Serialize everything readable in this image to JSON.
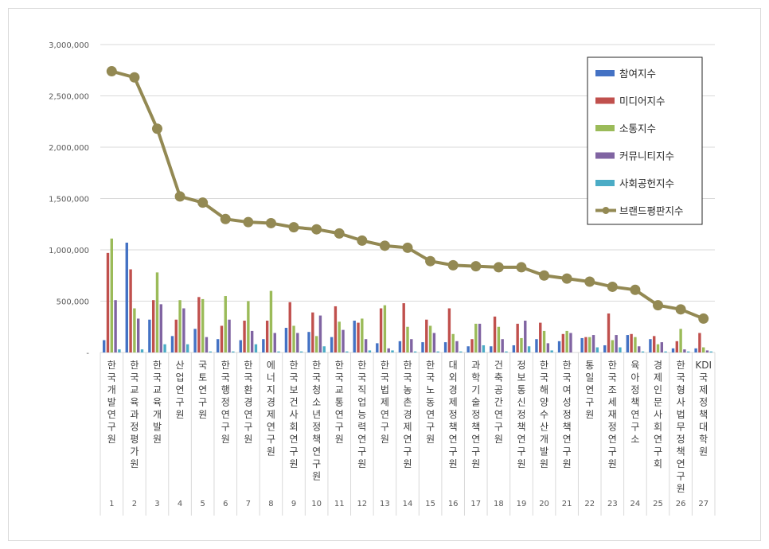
{
  "chart_data": {
    "type": "bar",
    "ylim": [
      0,
      3000000
    ],
    "yticks": [
      0,
      500000,
      1000000,
      1500000,
      2000000,
      2500000,
      3000000
    ],
    "ytick_labels": [
      "-",
      "500,000",
      "1,000,000",
      "1,500,000",
      "2,000,000",
      "2,500,000",
      "3,000,000"
    ],
    "grid": true,
    "legend_position": "top-right",
    "categories": [
      "한국개발연구원",
      "한국교육과정평가원",
      "한국교육개발원",
      "산업연구원",
      "국토연구원",
      "한국행정연구원",
      "한국환경연구원",
      "에너지경제연구원",
      "한국보건사회연구원",
      "한국청소년정책연구원",
      "한국교통연구원",
      "한국직업능력연구원",
      "한국법제연구원",
      "한국농촌경제연구원",
      "한국노동연구원",
      "대외경제정책연구원",
      "과학기술정책연구원",
      "건축공간연구원",
      "정보통신정책연구원",
      "한국해양수산개발원",
      "한국여성정책연구원",
      "통일연구원",
      "한국조세재정연구원",
      "육아정책연구소",
      "경제인문사회연구회",
      "한국형사법무정책연구원",
      "KDI국제정책대학원"
    ],
    "ranks": [
      "1",
      "2",
      "3",
      "4",
      "5",
      "6",
      "7",
      "8",
      "9",
      "10",
      "11",
      "12",
      "13",
      "14",
      "15",
      "16",
      "17",
      "18",
      "19",
      "20",
      "21",
      "22",
      "23",
      "24",
      "25",
      "26",
      "27"
    ],
    "series": [
      {
        "name": "참여지수",
        "color": "#4472c4",
        "values": [
          120000,
          1070000,
          320000,
          160000,
          230000,
          130000,
          120000,
          130000,
          240000,
          200000,
          150000,
          310000,
          90000,
          110000,
          100000,
          100000,
          60000,
          60000,
          70000,
          130000,
          110000,
          140000,
          70000,
          170000,
          130000,
          40000,
          40000
        ]
      },
      {
        "name": "미디어지수",
        "color": "#c0504d",
        "values": [
          970000,
          810000,
          510000,
          320000,
          540000,
          260000,
          310000,
          310000,
          490000,
          390000,
          450000,
          290000,
          430000,
          480000,
          320000,
          430000,
          130000,
          350000,
          280000,
          290000,
          180000,
          150000,
          380000,
          180000,
          160000,
          110000,
          190000
        ]
      },
      {
        "name": "소통지수",
        "color": "#9bbb59",
        "values": [
          1110000,
          430000,
          780000,
          510000,
          520000,
          550000,
          500000,
          600000,
          260000,
          160000,
          300000,
          330000,
          460000,
          250000,
          260000,
          180000,
          280000,
          250000,
          140000,
          210000,
          210000,
          150000,
          120000,
          150000,
          80000,
          230000,
          50000
        ]
      },
      {
        "name": "커뮤니티지수",
        "color": "#8064a2",
        "values": [
          510000,
          330000,
          470000,
          430000,
          150000,
          320000,
          210000,
          190000,
          190000,
          360000,
          220000,
          130000,
          40000,
          130000,
          190000,
          110000,
          280000,
          130000,
          310000,
          90000,
          190000,
          170000,
          170000,
          60000,
          100000,
          30000,
          20000
        ]
      },
      {
        "name": "사회공헌지수",
        "color": "#4bacc6",
        "values": [
          30000,
          30000,
          80000,
          80000,
          10000,
          10000,
          80000,
          10000,
          10000,
          60000,
          10000,
          20000,
          20000,
          10000,
          10000,
          10000,
          70000,
          10000,
          60000,
          20000,
          0,
          50000,
          50000,
          10000,
          10000,
          10000,
          10000
        ]
      }
    ],
    "line": {
      "name": "브랜드평판지수",
      "color": "#938953",
      "values": [
        2740000,
        2680000,
        2180000,
        1520000,
        1460000,
        1300000,
        1270000,
        1260000,
        1220000,
        1200000,
        1160000,
        1090000,
        1040000,
        1020000,
        890000,
        850000,
        840000,
        830000,
        830000,
        750000,
        720000,
        690000,
        640000,
        610000,
        460000,
        420000,
        330000
      ]
    },
    "legend": [
      "참여지수",
      "미디어지수",
      "소통지수",
      "커뮤니티지수",
      "사회공헌지수",
      "브랜드평판지수"
    ]
  }
}
